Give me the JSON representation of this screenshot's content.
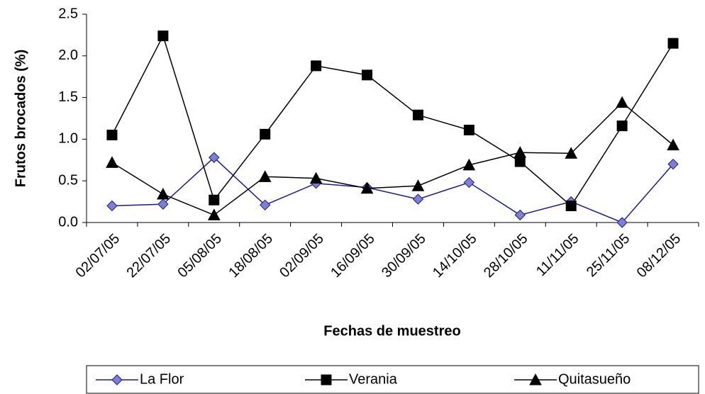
{
  "chart_data": {
    "type": "line",
    "x_label": "Fechas de muestreo",
    "y_label": "Frutos brocados (%)",
    "categories": [
      "02/07/05",
      "22/07/05",
      "05/08/05",
      "18/08/05",
      "02/09/05",
      "16/09/05",
      "30/09/05",
      "14/10/05",
      "28/10/05",
      "11/11/05",
      "25/11/05",
      "08/12/05"
    ],
    "series": [
      {
        "name": "La Flor",
        "color": "#1a1a8c",
        "marker": "diamond",
        "values": [
          0.2,
          0.22,
          0.78,
          0.21,
          0.47,
          0.42,
          0.28,
          0.48,
          0.09,
          0.25,
          0.0,
          0.7
        ]
      },
      {
        "name": "Verania",
        "color": "#000000",
        "marker": "square",
        "values": [
          1.05,
          2.24,
          0.27,
          1.06,
          1.88,
          1.77,
          1.29,
          1.11,
          0.73,
          0.2,
          1.16,
          2.15
        ]
      },
      {
        "name": "Quitasueño",
        "color": "#000000",
        "marker": "triangle",
        "values": [
          0.72,
          0.34,
          0.09,
          0.55,
          0.53,
          0.41,
          0.44,
          0.69,
          0.84,
          0.83,
          1.44,
          0.93
        ]
      }
    ],
    "ylim": [
      0,
      2.5
    ],
    "yticks": [
      {
        "value": 0,
        "label": "0.0"
      },
      0.5,
      {
        "value": 1,
        "label": "1.0"
      },
      1.5,
      {
        "value": 2,
        "label": "2.0"
      },
      2.5
    ],
    "grid": false,
    "legend": "bottom"
  }
}
